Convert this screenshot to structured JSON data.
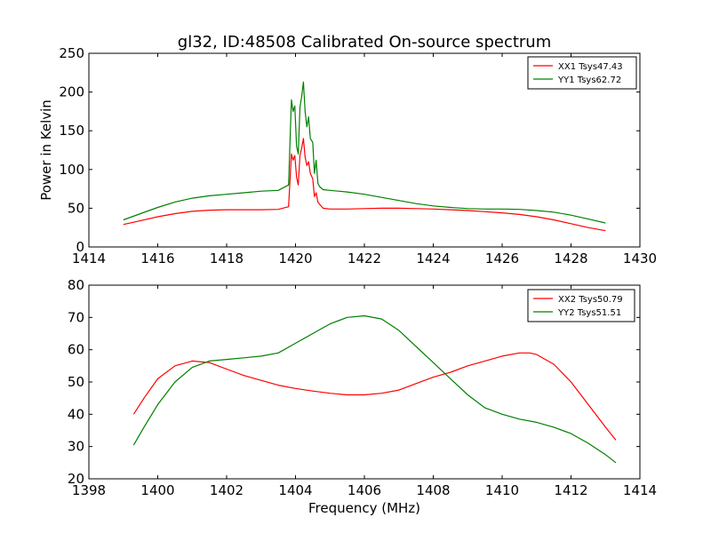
{
  "title": "gl32, ID:48508 Calibrated On-source spectrum",
  "chart_data": [
    {
      "type": "line",
      "xlabel": "",
      "ylabel": "Power in Kelvin",
      "xlim": [
        1414,
        1430
      ],
      "ylim": [
        0,
        250
      ],
      "xticks": [
        1414,
        1416,
        1418,
        1420,
        1422,
        1424,
        1426,
        1428,
        1430
      ],
      "yticks": [
        0,
        50,
        100,
        150,
        200,
        250
      ],
      "legend_position": "top-right",
      "series": [
        {
          "name": "XX1 Tsys47.43",
          "color": "#ff0000",
          "x": [
            1415.0,
            1415.5,
            1416.0,
            1416.5,
            1417.0,
            1417.5,
            1418.0,
            1418.5,
            1419.0,
            1419.5,
            1419.8,
            1419.88,
            1419.93,
            1419.98,
            1420.03,
            1420.08,
            1420.13,
            1420.18,
            1420.23,
            1420.28,
            1420.33,
            1420.38,
            1420.43,
            1420.5,
            1420.55,
            1420.6,
            1420.65,
            1420.7,
            1420.8,
            1421.0,
            1421.5,
            1422.0,
            1422.5,
            1423.0,
            1423.5,
            1424.0,
            1424.5,
            1425.0,
            1425.5,
            1426.0,
            1426.5,
            1427.0,
            1427.5,
            1428.0,
            1428.5,
            1429.0
          ],
          "y": [
            29,
            34,
            39,
            43,
            46,
            47.5,
            48,
            48,
            48,
            48.5,
            52,
            120,
            112,
            118,
            90,
            80,
            118,
            128,
            140,
            116,
            105,
            110,
            95,
            88,
            65,
            70,
            58,
            55,
            50,
            49,
            49,
            49.5,
            50,
            50,
            49.5,
            49,
            48,
            47,
            45.5,
            44,
            42,
            39,
            35,
            30,
            25,
            21
          ]
        },
        {
          "name": "YY1 Tsys62.72",
          "color": "#008000",
          "x": [
            1415.0,
            1415.5,
            1416.0,
            1416.5,
            1417.0,
            1417.5,
            1418.0,
            1418.5,
            1419.0,
            1419.5,
            1419.8,
            1419.88,
            1419.93,
            1419.98,
            1420.03,
            1420.08,
            1420.13,
            1420.18,
            1420.23,
            1420.28,
            1420.33,
            1420.38,
            1420.43,
            1420.5,
            1420.55,
            1420.6,
            1420.65,
            1420.7,
            1420.8,
            1421.0,
            1421.5,
            1422.0,
            1422.5,
            1423.0,
            1423.5,
            1424.0,
            1424.5,
            1425.0,
            1425.5,
            1426.0,
            1426.5,
            1427.0,
            1427.5,
            1428.0,
            1428.5,
            1429.0
          ],
          "y": [
            35,
            43,
            51,
            58,
            63,
            66,
            68,
            70,
            72,
            73,
            80,
            190,
            175,
            182,
            130,
            120,
            180,
            195,
            213,
            175,
            155,
            168,
            140,
            135,
            95,
            112,
            82,
            78,
            74,
            73,
            71,
            68,
            64,
            60,
            56,
            53,
            51,
            49.5,
            49,
            49,
            48.5,
            47,
            45,
            41,
            36,
            31
          ]
        }
      ]
    },
    {
      "type": "line",
      "xlabel": "Frequency (MHz)",
      "ylabel": "",
      "xlim": [
        1398,
        1414
      ],
      "ylim": [
        20,
        80
      ],
      "xticks": [
        1398,
        1400,
        1402,
        1404,
        1406,
        1408,
        1410,
        1412,
        1414
      ],
      "yticks": [
        20,
        30,
        40,
        50,
        60,
        70,
        80
      ],
      "legend_position": "top-right",
      "series": [
        {
          "name": "XX2 Tsys50.79",
          "color": "#ff0000",
          "x": [
            1399.3,
            1399.6,
            1400.0,
            1400.5,
            1401.0,
            1401.5,
            1402.0,
            1402.5,
            1403.0,
            1403.5,
            1404.0,
            1404.5,
            1405.0,
            1405.5,
            1406.0,
            1406.5,
            1407.0,
            1407.5,
            1408.0,
            1408.5,
            1409.0,
            1409.5,
            1410.0,
            1410.5,
            1410.8,
            1411.0,
            1411.5,
            1412.0,
            1412.5,
            1413.0,
            1413.3
          ],
          "y": [
            40,
            45,
            51,
            55,
            56.5,
            56,
            54,
            52,
            50.5,
            49,
            48,
            47.2,
            46.5,
            46,
            46,
            46.5,
            47.5,
            49.5,
            51.5,
            53,
            55,
            56.5,
            58,
            59,
            59,
            58.5,
            55.5,
            50,
            43,
            36,
            32
          ]
        },
        {
          "name": "YY2 Tsys51.51",
          "color": "#008000",
          "x": [
            1399.3,
            1399.6,
            1400.0,
            1400.5,
            1401.0,
            1401.5,
            1402.0,
            1402.5,
            1403.0,
            1403.5,
            1404.0,
            1404.5,
            1405.0,
            1405.5,
            1406.0,
            1406.5,
            1407.0,
            1407.5,
            1408.0,
            1408.5,
            1409.0,
            1409.5,
            1410.0,
            1410.5,
            1411.0,
            1411.5,
            1412.0,
            1412.5,
            1413.0,
            1413.3
          ],
          "y": [
            30.5,
            36,
            43,
            50,
            54.5,
            56.5,
            57,
            57.5,
            58,
            59,
            62,
            65,
            68,
            70,
            70.5,
            69.5,
            66,
            61,
            56,
            51,
            46,
            42,
            40,
            38.5,
            37.5,
            36,
            34,
            31,
            27.5,
            25
          ]
        }
      ]
    }
  ]
}
